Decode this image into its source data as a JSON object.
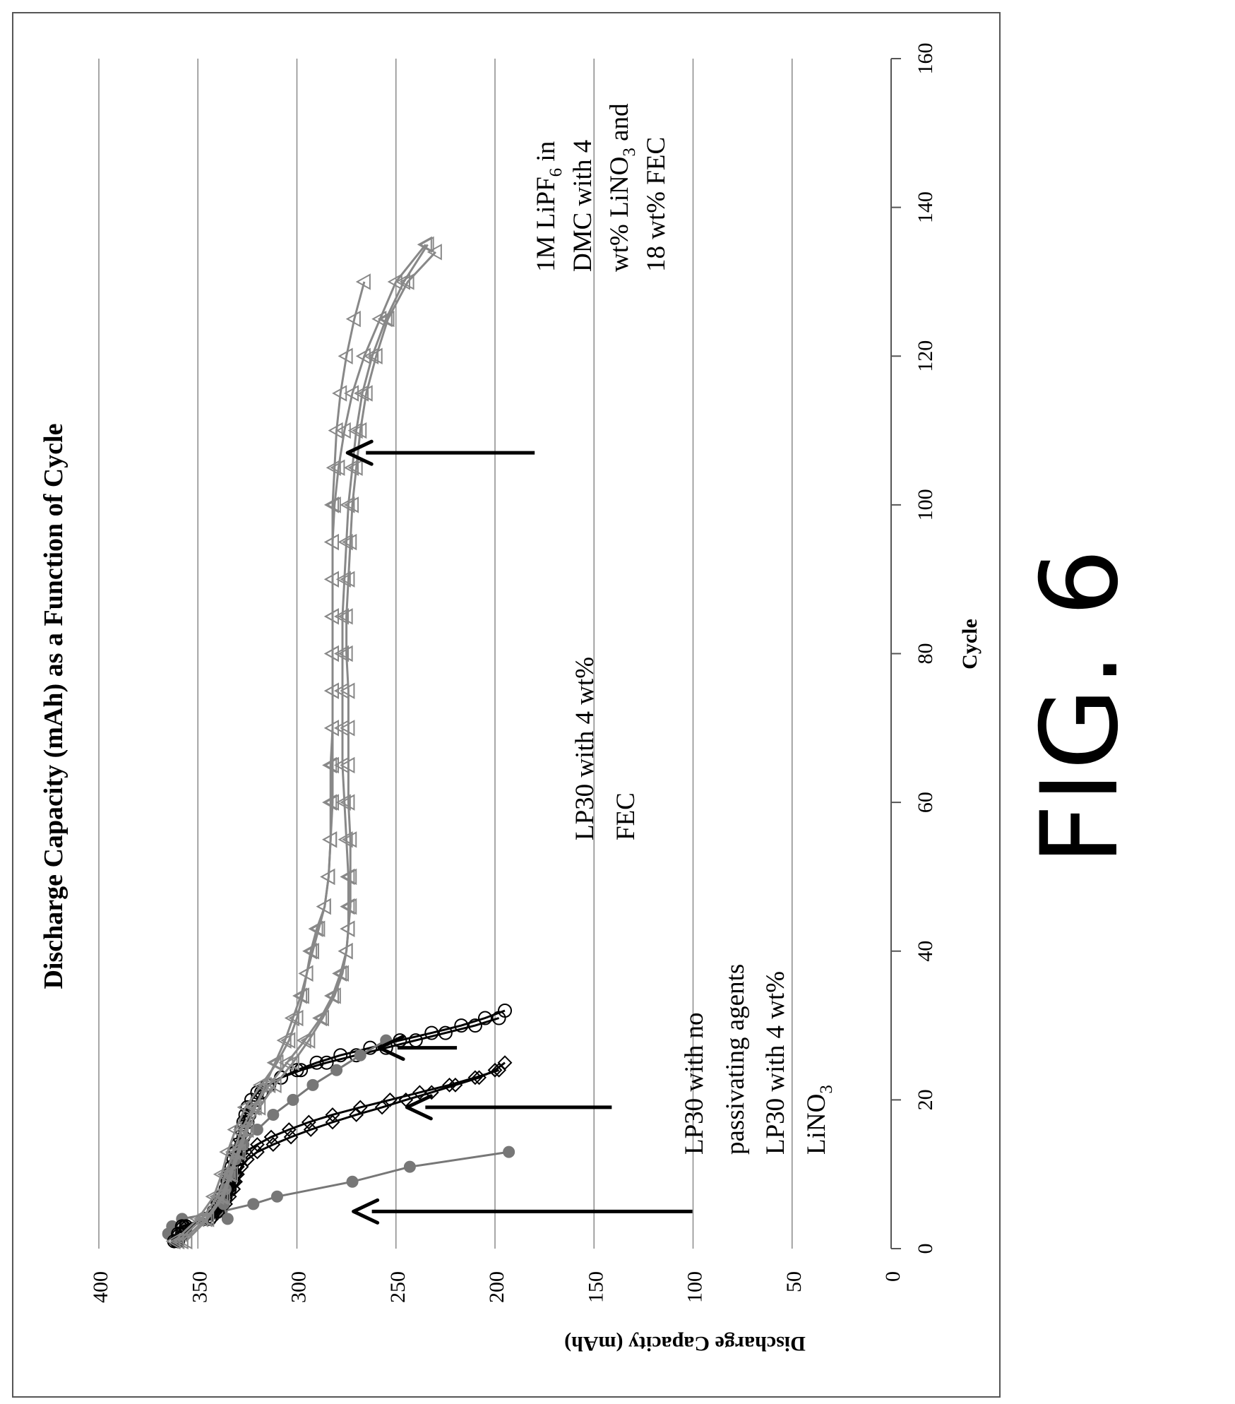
{
  "figure_label": "FIG. 6",
  "chart_data": {
    "type": "scatter",
    "title": "Discharge Capacity (mAh) as a Function of Cycle",
    "xlabel": "Cycle",
    "ylabel": "Discharge Capacity (mAh)",
    "xlim": [
      0,
      160
    ],
    "ylim": [
      0,
      400
    ],
    "xticks": [
      "0",
      "20",
      "40",
      "60",
      "80",
      "100",
      "120",
      "140",
      "160"
    ],
    "yticks": [
      "0",
      "50",
      "100",
      "150",
      "200",
      "250",
      "300",
      "350",
      "400"
    ],
    "grid": true,
    "orientation": "rotated-90-ccw",
    "series": [
      {
        "label_id": "lp30-linitrate",
        "marker": "filled-circle",
        "color": "#777777",
        "x": [
          1,
          2,
          3,
          4,
          5,
          6,
          7,
          9,
          11,
          13
        ],
        "y": [
          360,
          365,
          363,
          358,
          338,
          322,
          310,
          272,
          243,
          193
        ]
      },
      {
        "label_id": "lp30-none-a",
        "marker": "diamond",
        "color": "#000000",
        "x": [
          1,
          2,
          3,
          4,
          5,
          6,
          7,
          8,
          9,
          10,
          11,
          12,
          13,
          14,
          15,
          16,
          17,
          18,
          19,
          20,
          21,
          22,
          23,
          24
        ],
        "y": [
          362,
          360,
          358,
          345,
          341,
          338,
          336,
          334,
          332,
          331,
          330,
          328,
          326,
          320,
          313,
          304,
          294,
          282,
          268,
          253,
          238,
          223,
          210,
          198
        ]
      },
      {
        "label_id": "lp30-none-b",
        "marker": "diamond",
        "color": "#000000",
        "x": [
          1,
          2,
          3,
          4,
          5,
          6,
          7,
          8,
          9,
          10,
          11,
          12,
          13,
          14,
          15,
          16,
          17,
          18,
          19,
          20,
          21,
          22,
          23,
          24,
          25
        ],
        "y": [
          360,
          358,
          356,
          343,
          339,
          336,
          334,
          332,
          331,
          330,
          328,
          325,
          320,
          312,
          303,
          293,
          282,
          270,
          257,
          245,
          232,
          220,
          208,
          200,
          195
        ]
      },
      {
        "label_id": "lp30-fec-a",
        "marker": "open-circle",
        "color": "#000000",
        "x": [
          1,
          2,
          3,
          4,
          5,
          6,
          7,
          8,
          9,
          10,
          11,
          12,
          13,
          14,
          15,
          16,
          17,
          18,
          19,
          20,
          21,
          22,
          23,
          24,
          25,
          26,
          27,
          28,
          29,
          30,
          31
        ],
        "y": [
          362,
          360,
          358,
          346,
          342,
          340,
          338,
          336,
          335,
          334,
          333,
          332,
          331,
          330,
          329,
          328,
          327,
          326,
          325,
          323,
          320,
          315,
          308,
          298,
          285,
          270,
          255,
          240,
          225,
          210,
          198
        ]
      },
      {
        "label_id": "lp30-fec-b",
        "marker": "open-circle",
        "color": "#000000",
        "x": [
          1,
          2,
          3,
          4,
          5,
          6,
          7,
          8,
          9,
          10,
          11,
          12,
          13,
          14,
          15,
          16,
          17,
          18,
          19,
          20,
          21,
          22,
          23,
          24,
          25,
          26,
          27,
          28,
          29,
          30,
          31,
          32
        ],
        "y": [
          360,
          358,
          356,
          344,
          340,
          338,
          336,
          334,
          333,
          332,
          331,
          330,
          329,
          328,
          327,
          326,
          325,
          324,
          322,
          320,
          318,
          314,
          308,
          300,
          290,
          278,
          263,
          248,
          232,
          217,
          205,
          195
        ]
      },
      {
        "label_id": "lp30-mixed",
        "marker": "filled-circle",
        "color": "#777777",
        "x": [
          4,
          6,
          8,
          10,
          12,
          14,
          16,
          18,
          20,
          22,
          24,
          26,
          28
        ],
        "y": [
          335,
          337,
          336,
          334,
          331,
          327,
          320,
          312,
          302,
          292,
          280,
          268,
          255
        ]
      },
      {
        "label_id": "lipf6-a",
        "marker": "open-triangle",
        "color": "#888888",
        "x": [
          1,
          4,
          7,
          10,
          13,
          16,
          19,
          22,
          25,
          28,
          31,
          34,
          37,
          40,
          43,
          46,
          50,
          55,
          60,
          65,
          70,
          75,
          80,
          85,
          90,
          95,
          100,
          105,
          110,
          115,
          120,
          125,
          130,
          135
        ],
        "y": [
          362,
          350,
          342,
          338,
          335,
          331,
          326,
          318,
          310,
          304,
          300,
          297,
          295,
          293,
          290,
          286,
          284,
          283,
          282,
          282,
          282,
          282,
          282,
          282,
          282,
          282,
          281,
          279,
          276,
          272,
          266,
          258,
          250,
          235
        ]
      },
      {
        "label_id": "lipf6-b",
        "marker": "open-triangle",
        "color": "#888888",
        "x": [
          1,
          4,
          7,
          10,
          13,
          16,
          19,
          22,
          25,
          28,
          31,
          34,
          37,
          40,
          43,
          46,
          50,
          55,
          60,
          65,
          70,
          75,
          80,
          85,
          90,
          95,
          100,
          105,
          110,
          115,
          120,
          125,
          130,
          134
        ],
        "y": [
          360,
          348,
          340,
          336,
          332,
          328,
          322,
          314,
          305,
          296,
          288,
          282,
          278,
          275,
          274,
          273,
          273,
          273,
          274,
          274,
          274,
          274,
          275,
          275,
          274,
          273,
          272,
          270,
          268,
          265,
          260,
          254,
          244,
          230
        ]
      },
      {
        "label_id": "lipf6-c",
        "marker": "open-triangle",
        "color": "#888888",
        "x": [
          1,
          4,
          7,
          10,
          13,
          16,
          19,
          22,
          25,
          28,
          31,
          34,
          37,
          40,
          43,
          46,
          50,
          55,
          60,
          65,
          70,
          75,
          80,
          85,
          90,
          95,
          100,
          105,
          110,
          115,
          120,
          125,
          130
        ],
        "y": [
          358,
          346,
          338,
          334,
          330,
          326,
          321,
          316,
          311,
          306,
          302,
          298,
          295,
          292,
          289,
          286,
          284,
          283,
          283,
          283,
          282,
          282,
          282,
          282,
          282,
          282,
          282,
          281,
          280,
          278,
          275,
          271,
          266
        ]
      },
      {
        "label_id": "lipf6-d",
        "marker": "open-triangle",
        "color": "#888888",
        "x": [
          1,
          4,
          7,
          10,
          13,
          16,
          19,
          22,
          25,
          28,
          31,
          34,
          37,
          40,
          43,
          46,
          50,
          55,
          60,
          65,
          70,
          75,
          80,
          85,
          90,
          95,
          100,
          105,
          110,
          115,
          120,
          125,
          130,
          135
        ],
        "y": [
          356,
          345,
          337,
          333,
          329,
          325,
          319,
          311,
          302,
          294,
          287,
          281,
          277,
          275,
          274,
          274,
          274,
          275,
          276,
          277,
          277,
          277,
          277,
          277,
          276,
          275,
          274,
          272,
          270,
          267,
          262,
          255,
          246,
          234
        ]
      }
    ],
    "annotations": [
      {
        "lines": [
          "1M LiPF",
          "6",
          " in"
        ],
        "line2": "DMC with 4",
        "line3": [
          "wt% LiNO",
          "3",
          " and"
        ],
        "line4": "18 wt% FEC",
        "arrow_to": [
          107,
          278
        ]
      },
      {
        "lines": [
          "LP30 with 4 wt%"
        ],
        "line2": "FEC",
        "arrow_to": [
          27,
          262
        ]
      },
      {
        "lines": [
          "LP30 with no"
        ],
        "line2": "passivating agents",
        "arrow_to": [
          19,
          248
        ]
      },
      {
        "lines": [
          "LP30 with 4 wt%"
        ],
        "line2": [
          "LiNO",
          "3"
        ],
        "arrow_to": [
          5,
          275
        ]
      }
    ]
  }
}
